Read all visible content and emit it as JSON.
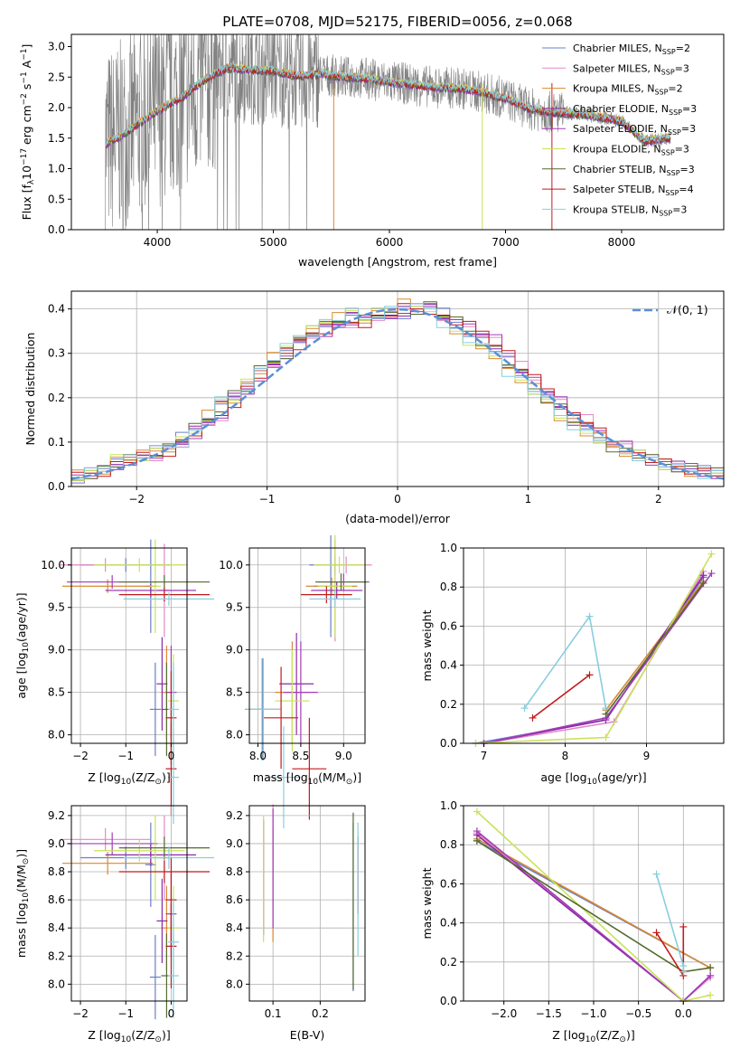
{
  "colors": {
    "series": [
      "#6a7fc9",
      "#e28ac6",
      "#d98830",
      "#8c2aa8",
      "#a33cb7",
      "#c9e25a",
      "#556b2f",
      "#c21b1b",
      "#87cede"
    ],
    "data_line": "#808080",
    "gauss": "#5b8fd6"
  },
  "legend": [
    "Chabrier MILES, N",
    "Salpeter MILES, N",
    "Kroupa MILES, N",
    "Chabrier ELODIE, N",
    "Salpeter ELODIE, N",
    "Kroupa ELODIE, N",
    "Chabrier STELIB, N",
    "Salpeter STELIB, N",
    "Kroupa STELIB, N"
  ],
  "legend_sub": "SSP",
  "legend_n": [
    "=2",
    "=3",
    "=2",
    "=3",
    "=3",
    "=3",
    "=3",
    "=4",
    "=3"
  ],
  "chart_data": [
    {
      "id": "spectrum",
      "type": "line",
      "title": "PLATE=0708, MJD=52175, FIBERID=0056, z=0.068",
      "xlabel": "wavelength [Angstrom, rest frame]",
      "ylabel": "Flux [f",
      "ylabel_sub": "λ",
      "ylabel_rest": "10",
      "ylabel_exp": "−17",
      "ylabel_units": " erg cm",
      "ylabel_units_exp1": "−2",
      "ylabel_units2": " s",
      "ylabel_units_exp2": "−1",
      "ylabel_units3": " A",
      "ylabel_units_exp3": "−1",
      "ylabel_end": "]",
      "xlim": [
        3260,
        8880
      ],
      "ylim": [
        0,
        3.2
      ],
      "xticks": [
        4000,
        5000,
        6000,
        7000,
        8000
      ],
      "yticks": [
        "0.0",
        "0.5",
        "1.0",
        "1.5",
        "2.0",
        "2.5",
        "3.0"
      ],
      "continuum": [
        [
          3550,
          1.4
        ],
        [
          3700,
          1.55
        ],
        [
          3850,
          1.75
        ],
        [
          4000,
          1.95
        ],
        [
          4200,
          2.15
        ],
        [
          4400,
          2.45
        ],
        [
          4600,
          2.65
        ],
        [
          4800,
          2.62
        ],
        [
          5000,
          2.6
        ],
        [
          5200,
          2.52
        ],
        [
          5400,
          2.55
        ],
        [
          5600,
          2.5
        ],
        [
          5800,
          2.48
        ],
        [
          6000,
          2.42
        ],
        [
          6200,
          2.38
        ],
        [
          6400,
          2.33
        ],
        [
          6600,
          2.32
        ],
        [
          6800,
          2.25
        ],
        [
          7000,
          2.15
        ],
        [
          7200,
          1.98
        ],
        [
          7400,
          1.92
        ],
        [
          7600,
          1.9
        ],
        [
          7800,
          1.85
        ],
        [
          8000,
          1.78
        ],
        [
          8200,
          1.45
        ],
        [
          8400,
          1.5
        ]
      ]
    },
    {
      "id": "residuals",
      "type": "bar",
      "xlabel": "(data-model)/error",
      "ylabel": "Normed distribution",
      "xlim": [
        -2.5,
        2.5
      ],
      "ylim": [
        0,
        0.44
      ],
      "xticks": [
        "−2",
        "−1",
        "0",
        "1",
        "2"
      ],
      "yticks": [
        "0.0",
        "0.1",
        "0.2",
        "0.3",
        "0.4"
      ],
      "legend": "𝒩(0, 1)",
      "bin_width": 0.1
    },
    {
      "id": "age-vs-Z",
      "type": "scatter",
      "xlabel": "Z [log",
      "xlabel_sub": "10",
      "xlabel_rest": "(Z/Z",
      "xlabel_sun": "⊙",
      "xlabel_end": ")]",
      "ylabel": "age  [log",
      "ylabel_sub": "10",
      "ylabel_rest": "(age/yr)]",
      "xlim": [
        -2.2,
        0.35
      ],
      "ylim": [
        7.9,
        10.2
      ],
      "xticks": [
        "−2",
        "−1",
        "0"
      ],
      "yticks": [
        "8.0",
        "8.5",
        "9.0",
        "9.5",
        "10.0"
      ]
    },
    {
      "id": "age-vs-mass",
      "type": "scatter",
      "xlabel": "mass [log",
      "xlabel_sub": "10",
      "xlabel_rest": "(M/M",
      "xlabel_sun": "⊙",
      "xlabel_end": ")]",
      "xlim": [
        7.9,
        9.25
      ],
      "ylim": [
        7.9,
        10.2
      ],
      "xticks": [
        "8.0",
        "8.5",
        "9.0"
      ],
      "yticks": [
        "8.0",
        "8.5",
        "9.0",
        "9.5",
        "10.0"
      ]
    },
    {
      "id": "massweight-vs-age",
      "type": "line",
      "xlabel": "age  [log",
      "xlabel_sub": "10",
      "xlabel_rest": "(age/yr)]",
      "ylabel": "mass weight",
      "xlim": [
        6.75,
        9.95
      ],
      "ylim": [
        0,
        1.0
      ],
      "xticks": [
        "7",
        "8",
        "9"
      ],
      "yticks": [
        "0.0",
        "0.2",
        "0.4",
        "0.6",
        "0.8",
        "1.0"
      ]
    },
    {
      "id": "mass-vs-Z",
      "type": "scatter",
      "xlabel": "Z [log",
      "xlabel_sub": "10",
      "xlabel_rest": "(Z/Z",
      "xlabel_sun": "⊙",
      "xlabel_end": ")]",
      "ylabel": "mass [log",
      "ylabel_sub": "10",
      "ylabel_rest": "(M/M",
      "ylabel_sun": "⊙",
      "ylabel_end": ")]",
      "xlim": [
        -2.2,
        0.35
      ],
      "ylim": [
        7.88,
        9.27
      ],
      "xticks": [
        "−2",
        "−1",
        "0"
      ],
      "yticks": [
        "8.0",
        "8.2",
        "8.4",
        "8.6",
        "8.8",
        "9.0",
        "9.2"
      ]
    },
    {
      "id": "mass-vs-EBV",
      "type": "scatter",
      "xlabel": "E(B-V)",
      "xlim": [
        0.05,
        0.295
      ],
      "ylim": [
        7.88,
        9.27
      ],
      "xticks": [
        "0.1",
        "0.2"
      ],
      "yticks": [
        "8.0",
        "8.2",
        "8.4",
        "8.6",
        "8.8",
        "9.0",
        "9.2"
      ]
    },
    {
      "id": "massweight-vs-Z",
      "type": "line",
      "xlabel": "Z [log",
      "xlabel_sub": "10",
      "xlabel_rest": "(Z/Z",
      "xlabel_sun": "⊙",
      "xlabel_end": ")]",
      "ylabel": "mass weight",
      "xlim": [
        -2.45,
        0.45
      ],
      "ylim": [
        0,
        1.0
      ],
      "xticks": [
        "−2.0",
        "−1.5",
        "−1.0",
        "−0.5",
        "0.0"
      ],
      "yticks": [
        "0.0",
        "0.2",
        "0.4",
        "0.6",
        "0.8",
        "1.0"
      ]
    }
  ],
  "fits": [
    {
      "age": [
        10.0,
        9.75,
        8.3
      ],
      "Z": [
        -1.3,
        -0.2,
        0.0
      ],
      "mass": [
        8.9,
        8.85,
        8.05
      ],
      "w": [
        0.82,
        0.18,
        0.0
      ]
    },
    {
      "age": [
        10.0,
        9.7
      ],
      "Z": [
        -2.3,
        0.3
      ],
      "mass": [
        9.03,
        8.9
      ],
      "w": [
        0.86,
        0.12
      ]
    },
    {
      "age": [
        9.75,
        8.5
      ],
      "Z": [
        -2.3,
        0.3
      ],
      "mass": [
        8.86,
        8.4
      ],
      "w": [
        0.83,
        0.17
      ]
    },
    {
      "age": [
        9.7,
        8.6
      ],
      "Z": [
        -0.5,
        0.0
      ],
      "mass": [
        8.92,
        8.45
      ],
      "w": [
        0.88,
        0.12
      ]
    },
    {
      "age": [
        9.8,
        8.5
      ],
      "Z": [
        -2.3,
        0.3
      ],
      "mass": [
        9.0,
        8.5
      ],
      "w": [
        0.87,
        0.13
      ]
    },
    {
      "age": [
        10.0,
        9.75,
        8.4
      ],
      "Z": [
        -1.2,
        -0.5,
        0.3
      ],
      "mass": [
        8.95,
        8.9,
        8.4
      ],
      "w": [
        0.97,
        0.03,
        0.0
      ]
    },
    {
      "age": [
        9.8,
        8.3
      ],
      "Z": [
        -0.2,
        -0.1
      ],
      "mass": [
        8.97,
        8.06
      ],
      "w": [
        0.85,
        0.15
      ]
    },
    {
      "age": [
        9.65,
        8.2,
        7.6
      ],
      "Z": [
        -0.3,
        0.0,
        0.0
      ],
      "mass": [
        8.8,
        8.27,
        8.6
      ],
      "w": [
        0.38,
        0.35,
        0.13
      ]
    },
    {
      "age": [
        9.6,
        8.3,
        7.5
      ],
      "Z": [
        -0.2,
        0.0,
        0.0
      ],
      "mass": [
        8.9,
        8.06,
        8.3
      ],
      "w": [
        0.65,
        0.18,
        0.18
      ]
    }
  ],
  "ebv": [
    0.27,
    0.1,
    0.1,
    0.08,
    0.1,
    0.08,
    0.27,
    0.28,
    0.28
  ],
  "mw_age": [
    [
      [
        6.9,
        0.0
      ],
      [
        8.5,
        0.12
      ],
      [
        9.7,
        0.85
      ]
    ],
    [
      [
        7.0,
        0.0
      ],
      [
        8.6,
        0.11
      ],
      [
        9.7,
        0.88
      ]
    ],
    [
      [
        8.5,
        0.17
      ],
      [
        9.7,
        0.83
      ]
    ],
    [
      [
        7.0,
        0.0
      ],
      [
        8.5,
        0.12
      ],
      [
        9.7,
        0.86
      ]
    ],
    [
      [
        7.0,
        0.0
      ],
      [
        8.5,
        0.13
      ],
      [
        9.8,
        0.87
      ]
    ],
    [
      [
        6.9,
        0.0
      ],
      [
        8.5,
        0.03
      ],
      [
        9.8,
        0.97
      ]
    ],
    [
      [
        8.5,
        0.15
      ],
      [
        9.7,
        0.82
      ]
    ],
    [
      [
        7.6,
        0.13
      ],
      [
        8.3,
        0.35
      ]
    ],
    [
      [
        7.5,
        0.18
      ],
      [
        8.3,
        0.65
      ],
      [
        8.5,
        0.18
      ]
    ]
  ],
  "mw_Z": [
    [
      [
        -2.3,
        0.82
      ],
      [
        0.3,
        0.17
      ]
    ],
    [
      [
        -2.3,
        0.86
      ],
      [
        0.0,
        0.0
      ],
      [
        0.3,
        0.12
      ]
    ],
    [
      [
        -2.3,
        0.83
      ],
      [
        0.3,
        0.17
      ]
    ],
    [
      [
        -2.3,
        0.85
      ],
      [
        0.0,
        0.0
      ],
      [
        0.3,
        0.13
      ]
    ],
    [
      [
        -2.3,
        0.87
      ],
      [
        0.0,
        0.0
      ],
      [
        0.3,
        0.13
      ]
    ],
    [
      [
        -2.3,
        0.97
      ],
      [
        0.0,
        0.0
      ],
      [
        0.3,
        0.03
      ]
    ],
    [
      [
        -2.3,
        0.82
      ],
      [
        0.0,
        0.15
      ],
      [
        0.3,
        0.17
      ]
    ],
    [
      [
        -0.3,
        0.35
      ],
      [
        0.0,
        0.13
      ],
      [
        0.0,
        0.38
      ]
    ],
    [
      [
        -0.3,
        0.65
      ],
      [
        0.0,
        0.18
      ],
      [
        0.0,
        0.15
      ]
    ]
  ],
  "hists": [
    [
      0.02,
      0.03,
      0.04,
      0.05,
      0.06,
      0.07,
      0.08,
      0.09,
      0.11,
      0.13,
      0.15,
      0.18,
      0.21,
      0.22,
      0.26,
      0.28,
      0.3,
      0.33,
      0.35,
      0.36,
      0.37,
      0.38,
      0.38,
      0.39,
      0.38,
      0.39,
      0.4,
      0.41,
      0.39,
      0.37,
      0.35,
      0.33,
      0.31,
      0.28,
      0.25,
      0.22,
      0.2,
      0.18,
      0.15,
      0.13,
      0.11,
      0.09,
      0.08,
      0.07,
      0.06,
      0.05,
      0.045,
      0.04,
      0.035,
      0.03
    ],
    [
      0.02,
      0.03,
      0.035,
      0.05,
      0.06,
      0.065,
      0.07,
      0.08,
      0.095,
      0.12,
      0.14,
      0.16,
      0.19,
      0.22,
      0.25,
      0.27,
      0.3,
      0.32,
      0.34,
      0.35,
      0.36,
      0.37,
      0.37,
      0.38,
      0.39,
      0.4,
      0.4,
      0.4,
      0.38,
      0.37,
      0.36,
      0.35,
      0.33,
      0.3,
      0.27,
      0.24,
      0.22,
      0.19,
      0.16,
      0.15,
      0.12,
      0.1,
      0.09,
      0.07,
      0.06,
      0.05,
      0.045,
      0.04,
      0.035,
      0.03
    ],
    [
      0.025,
      0.03,
      0.04,
      0.06,
      0.065,
      0.07,
      0.08,
      0.09,
      0.1,
      0.12,
      0.16,
      0.19,
      0.2,
      0.23,
      0.26,
      0.29,
      0.31,
      0.34,
      0.35,
      0.37,
      0.38,
      0.39,
      0.38,
      0.39,
      0.4,
      0.41,
      0.4,
      0.4,
      0.37,
      0.35,
      0.33,
      0.31,
      0.3,
      0.26,
      0.24,
      0.22,
      0.19,
      0.16,
      0.14,
      0.12,
      0.11,
      0.09,
      0.08,
      0.07,
      0.06,
      0.05,
      0.04,
      0.035,
      0.03,
      0.03
    ]
  ]
}
